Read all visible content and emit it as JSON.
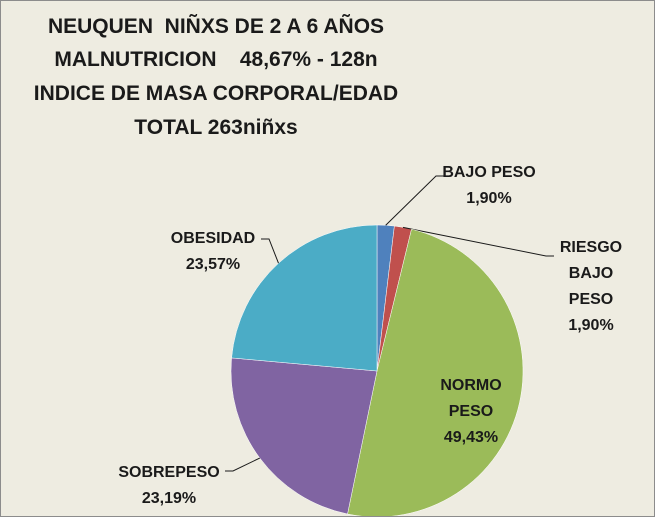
{
  "chart_data": {
    "type": "pie",
    "title": [
      "NEUQUEN  NIÑXS DE 2 A 6 AÑOS",
      "MALNUTRICION    48,67% - 128n",
      "INDICE DE MASA CORPORAL/EDAD",
      "TOTAL 263niñxs"
    ],
    "categories": [
      "BAJO PESO",
      "RIESGO\nBAJO PESO",
      "NORMO\nPESO",
      "SOBREPESO",
      "OBESIDAD"
    ],
    "values": [
      1.9,
      1.9,
      49.43,
      23.19,
      23.57
    ],
    "value_labels": [
      "1,90%",
      "1,90%",
      "49,43%",
      "23,19%",
      "23,57%"
    ],
    "colors": [
      "#4f81bd",
      "#c0504d",
      "#9bbb59",
      "#8064a2",
      "#4bacc6"
    ]
  }
}
